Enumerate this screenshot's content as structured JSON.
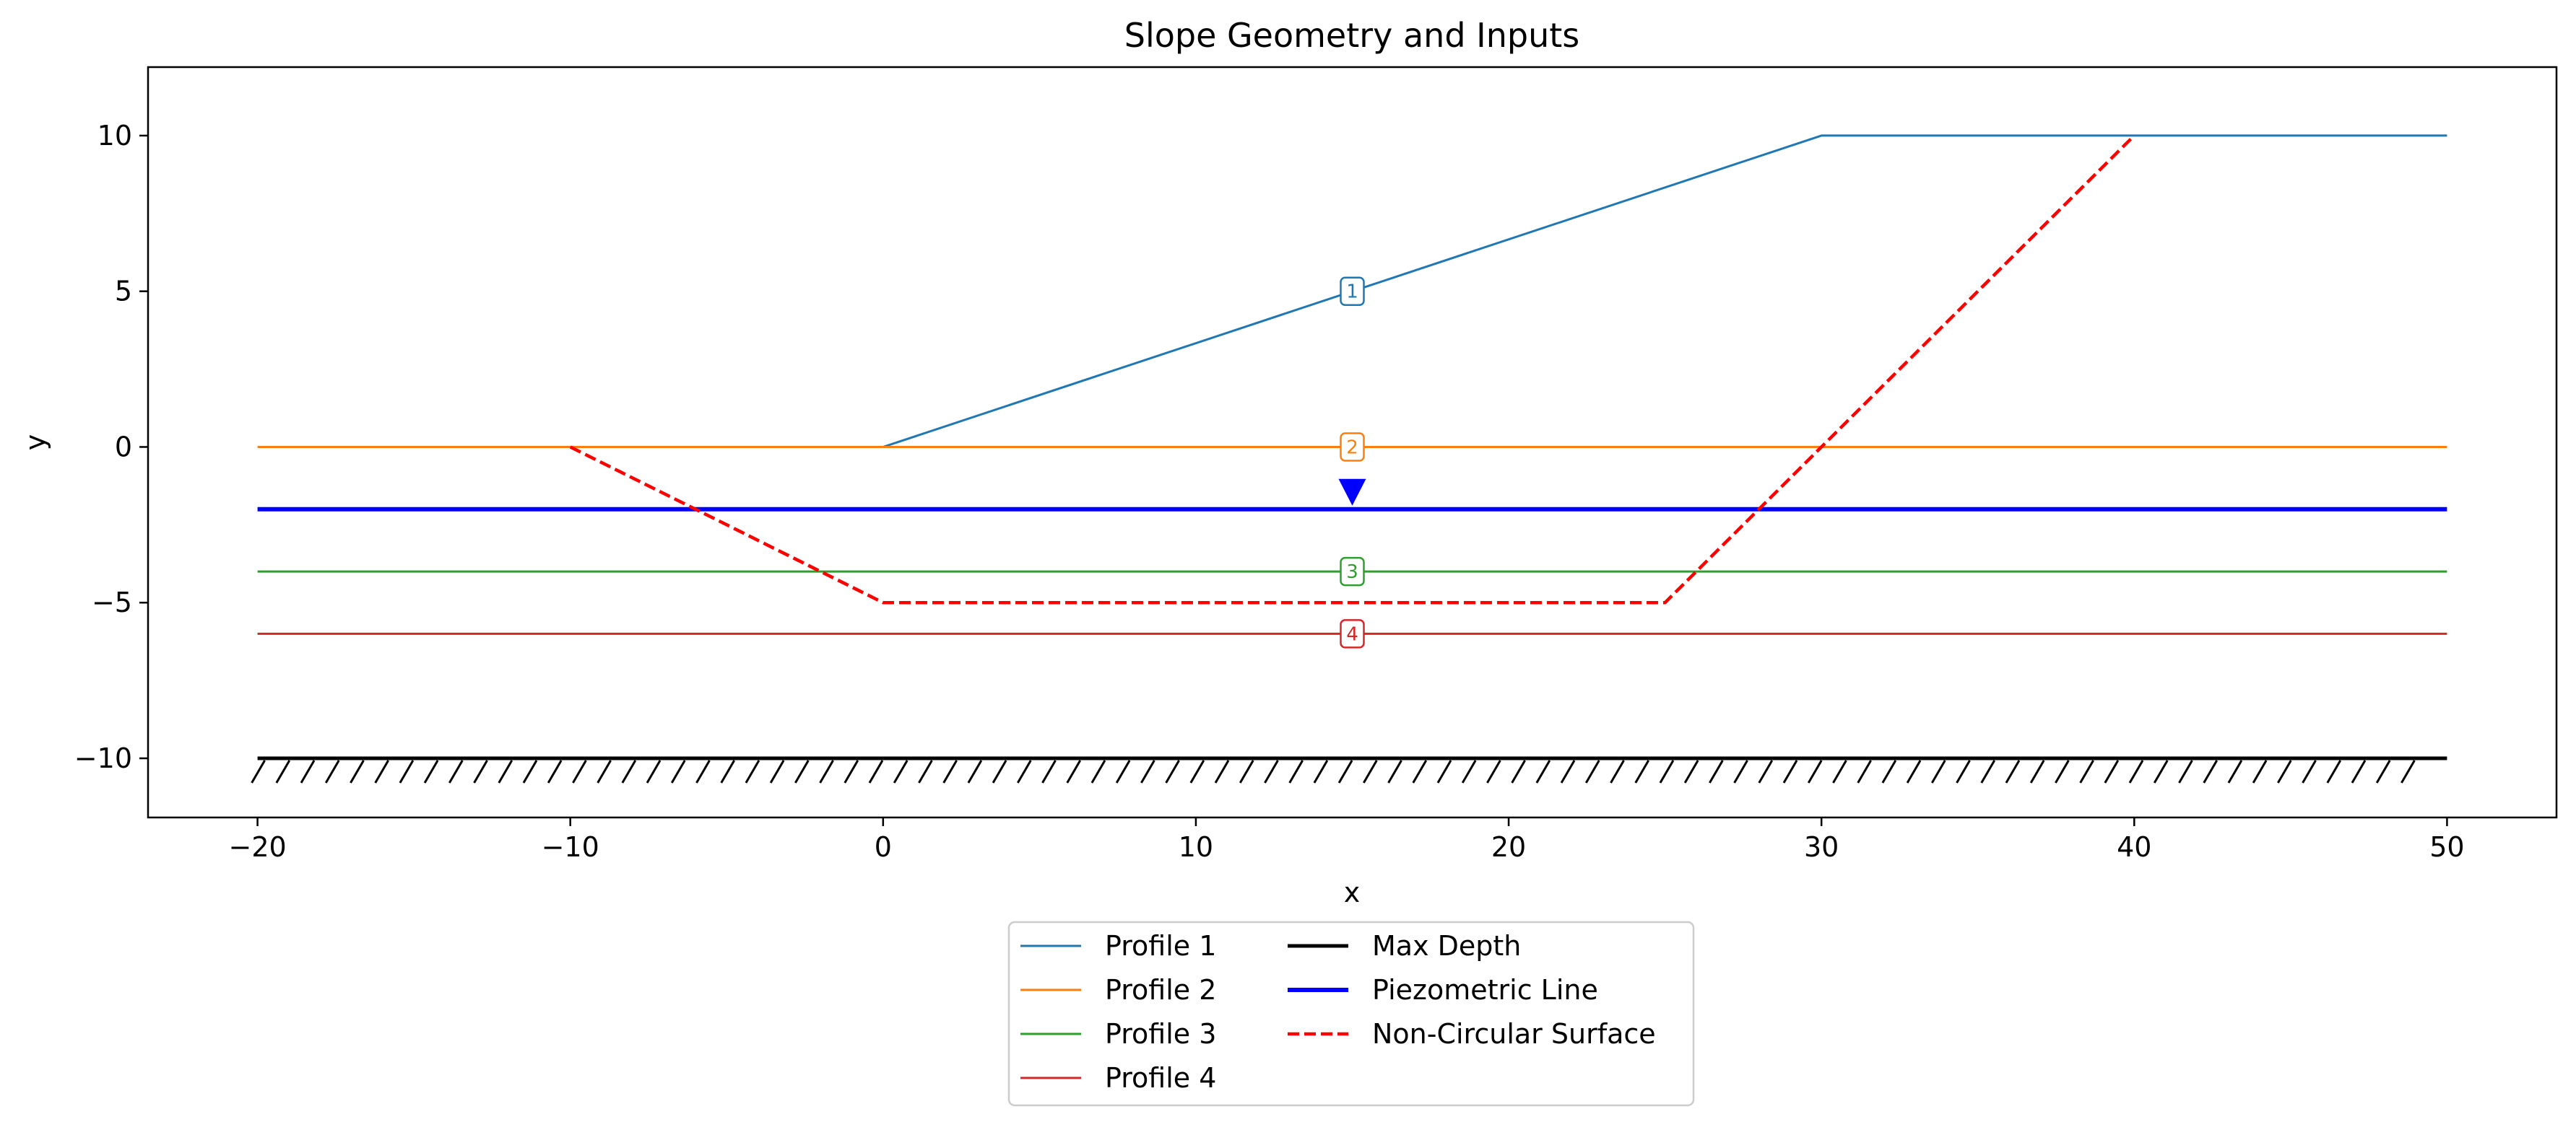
{
  "chart_data": {
    "type": "line",
    "title": "Slope Geometry and Inputs",
    "xlabel": "x",
    "ylabel": "y",
    "xlim": [
      -23.5,
      53.5
    ],
    "ylim": [
      -11.9,
      12.2
    ],
    "xticks": [
      -20,
      -10,
      0,
      10,
      20,
      30,
      40,
      50
    ],
    "yticks": [
      10,
      5,
      0,
      -5,
      -10
    ],
    "grid": false,
    "legend_position": "below",
    "series": [
      {
        "name": "Profile 1",
        "color": "#1f77b4",
        "style": "solid",
        "x": [
          -20,
          -10,
          0,
          30,
          50
        ],
        "y": [
          null,
          null,
          0,
          10,
          10
        ],
        "points": [
          [
            0,
            0
          ],
          [
            30,
            10
          ],
          [
            50,
            10
          ]
        ],
        "label": "1",
        "label_at": [
          15,
          5
        ]
      },
      {
        "name": "Profile 2",
        "color": "#ff7f0e",
        "style": "solid",
        "points": [
          [
            -20,
            0
          ],
          [
            50,
            0
          ]
        ],
        "label": "2",
        "label_at": [
          15,
          0
        ]
      },
      {
        "name": "Profile 3",
        "color": "#2ca02c",
        "style": "solid",
        "points": [
          [
            -20,
            -4
          ],
          [
            50,
            -4
          ]
        ],
        "label": "3",
        "label_at": [
          15,
          -4
        ]
      },
      {
        "name": "Profile 4",
        "color": "#d62728",
        "style": "solid",
        "points": [
          [
            -20,
            -6
          ],
          [
            50,
            -6
          ]
        ],
        "label": "4",
        "label_at": [
          15,
          -6
        ]
      },
      {
        "name": "Max Depth",
        "color": "#000000",
        "style": "solid",
        "points": [
          [
            -20,
            -10
          ],
          [
            50,
            -10
          ]
        ]
      },
      {
        "name": "Piezometric Line",
        "color": "#0000ff",
        "style": "thick",
        "points": [
          [
            -20,
            -2
          ],
          [
            50,
            -2
          ]
        ],
        "marker_at": [
          15,
          -2
        ]
      },
      {
        "name": "Non-Circular Surface",
        "color": "#ff0000",
        "style": "dashed",
        "points": [
          [
            -10,
            0
          ],
          [
            0,
            -5
          ],
          [
            25,
            -5
          ],
          [
            40,
            10
          ]
        ]
      }
    ],
    "legend": {
      "columns": [
        [
          "Profile 1",
          "Profile 2",
          "Profile 3",
          "Profile 4"
        ],
        [
          "Max Depth",
          "Piezometric Line",
          "Non-Circular Surface"
        ]
      ]
    }
  }
}
